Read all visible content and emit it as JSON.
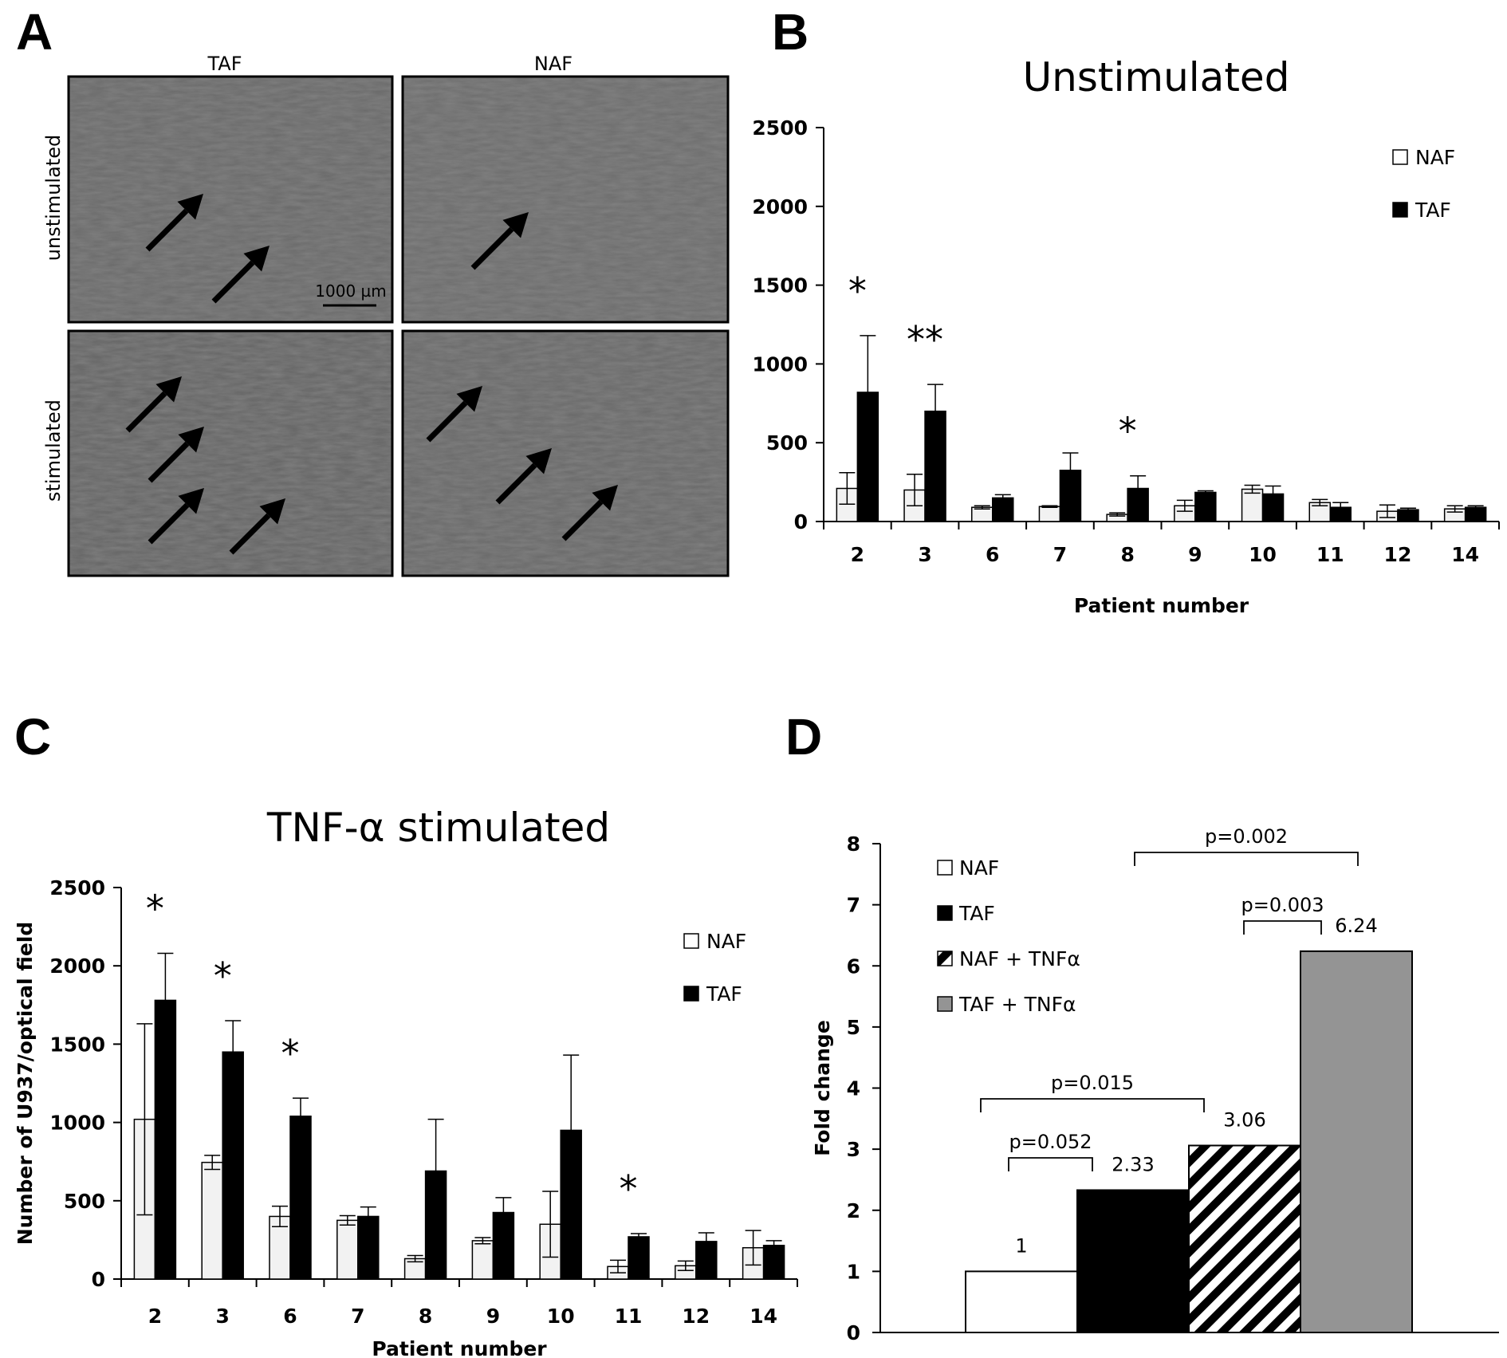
{
  "panels": {
    "A": {
      "letter": "A",
      "col_labels": [
        "TAF",
        "NAF"
      ],
      "row_labels": [
        "unstimulated",
        "stimulated"
      ],
      "scale_bar": "1000 µm"
    },
    "B": {
      "letter": "B"
    },
    "C": {
      "letter": "C"
    },
    "D": {
      "letter": "D"
    }
  },
  "chart_data": [
    {
      "panel": "B",
      "type": "bar",
      "title": "Unstimulated",
      "xlabel": "Patient number",
      "ylabel": "",
      "ylim": [
        0,
        2500
      ],
      "yticks": [
        0,
        500,
        1000,
        1500,
        2000,
        2500
      ],
      "categories": [
        "2",
        "3",
        "6",
        "7",
        "8",
        "9",
        "10",
        "11",
        "12",
        "14"
      ],
      "series": [
        {
          "name": "NAF",
          "color": "#f2f2f2",
          "values": [
            210,
            200,
            90,
            95,
            45,
            100,
            205,
            120,
            65,
            80
          ],
          "errors": [
            100,
            100,
            10,
            5,
            10,
            35,
            25,
            20,
            40,
            20
          ]
        },
        {
          "name": "TAF",
          "color": "#000000",
          "values": [
            820,
            700,
            150,
            325,
            210,
            185,
            175,
            90,
            75,
            90
          ],
          "errors": [
            360,
            170,
            20,
            110,
            80,
            10,
            50,
            30,
            10,
            10
          ]
        }
      ],
      "significance": [
        {
          "category": "2",
          "label": "*"
        },
        {
          "category": "3",
          "label": "**"
        },
        {
          "category": "8",
          "label": "*"
        }
      ],
      "legend": "top-right"
    },
    {
      "panel": "C",
      "type": "bar",
      "title": "TNF-α stimulated",
      "xlabel": "Patient number",
      "ylabel": "Number of U937/optical field",
      "ylim": [
        0,
        2500
      ],
      "yticks": [
        0,
        500,
        1000,
        1500,
        2000,
        2500
      ],
      "categories": [
        "2",
        "3",
        "6",
        "7",
        "8",
        "9",
        "10",
        "11",
        "12",
        "14"
      ],
      "series": [
        {
          "name": "NAF",
          "color": "#f2f2f2",
          "values": [
            1020,
            745,
            400,
            375,
            130,
            245,
            350,
            80,
            85,
            200
          ],
          "errors": [
            610,
            45,
            65,
            30,
            20,
            20,
            210,
            40,
            30,
            110
          ]
        },
        {
          "name": "TAF",
          "color": "#000000",
          "values": [
            1780,
            1450,
            1040,
            400,
            690,
            425,
            950,
            270,
            240,
            215
          ],
          "errors": [
            300,
            200,
            115,
            60,
            330,
            95,
            480,
            20,
            55,
            30
          ]
        }
      ],
      "significance": [
        {
          "category": "2",
          "label": "*"
        },
        {
          "category": "3",
          "label": "*"
        },
        {
          "category": "6",
          "label": "*"
        },
        {
          "category": "11",
          "label": "*"
        }
      ],
      "legend": "top-right"
    },
    {
      "panel": "D",
      "type": "bar",
      "title": "",
      "xlabel": "",
      "ylabel": "Fold change",
      "ylim": [
        0,
        8
      ],
      "yticks": [
        0,
        1,
        2,
        3,
        4,
        5,
        6,
        7,
        8
      ],
      "categories": [
        "NAF",
        "TAF",
        "NAF + TNFα",
        "TAF + TNFα"
      ],
      "values": [
        1,
        2.33,
        3.06,
        6.24
      ],
      "value_labels": [
        "1",
        "2.33",
        "3.06",
        "6.24"
      ],
      "fills": [
        "white",
        "black",
        "hatched",
        "gray"
      ],
      "comparisons": [
        {
          "from": 0,
          "to": 1,
          "label": "p=0.052"
        },
        {
          "from": 0,
          "to": 2,
          "label": "p=0.015"
        },
        {
          "from": 2,
          "to": 3,
          "label": "p=0.003"
        },
        {
          "from": 1,
          "to": 3,
          "label": "p=0.002"
        }
      ],
      "legend": "top-left"
    }
  ]
}
